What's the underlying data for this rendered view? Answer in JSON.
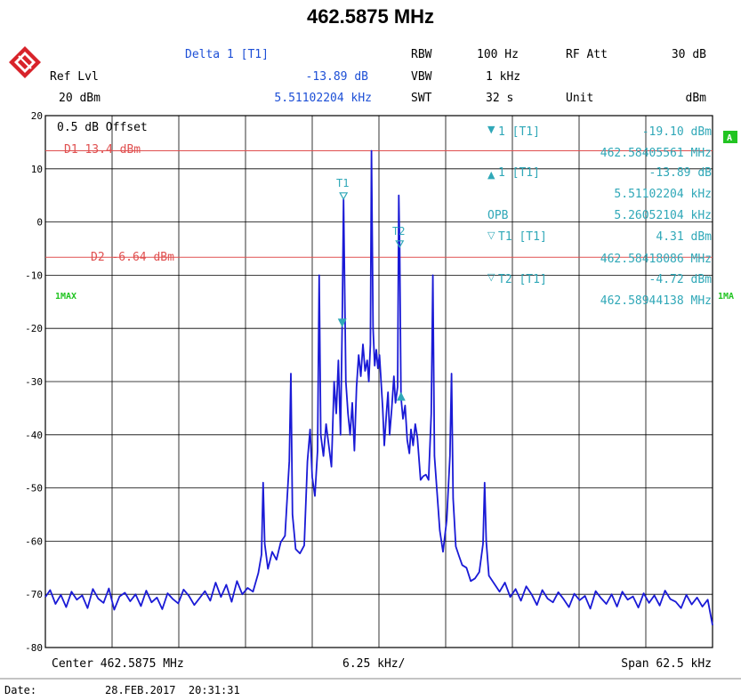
{
  "title": "462.5875 MHz",
  "header": {
    "delta_label": "Delta 1 [T1]",
    "delta_value": "-13.89 dB",
    "delta_freq": "5.51102204 kHz",
    "ref_lvl_label": "Ref Lvl",
    "ref_lvl_value": "20 dBm",
    "rbw_label": "RBW",
    "rbw_value": "100 Hz",
    "vbw_label": "VBW",
    "vbw_value": "1 kHz",
    "swt_label": "SWT",
    "swt_value": "32 s",
    "rf_att_label": "RF Att",
    "rf_att_value": "30 dB",
    "unit_label": "Unit",
    "unit_value": "dBm"
  },
  "footer": {
    "center": "Center 462.5875 MHz",
    "div": "6.25 kHz/",
    "span": "Span 62.5 kHz",
    "date_label": "Date:",
    "date_value": "28.FEB.2017  20:31:31"
  },
  "markers_panel": [
    {
      "symbol": "▼",
      "label": "1 [T1]",
      "value": "-19.10 dBm",
      "freq": "462.58405561 MHz"
    },
    {
      "symbol": "▲",
      "label": "1 [T1]",
      "value": "-13.89 dB",
      "freq": "5.51102204 kHz"
    },
    {
      "symbol": "",
      "label": "OPB",
      "value": "5.26052104 kHz",
      "freq": ""
    },
    {
      "symbol": "▽",
      "label": "T1 [T1]",
      "value": "4.31 dBm",
      "freq": "462.58418086 MHz"
    },
    {
      "symbol": "▽",
      "label": "T2 [T1]",
      "value": "-4.72 dBm",
      "freq": "462.58944138 MHz"
    }
  ],
  "plot_annotations": {
    "offset": "0.5 dB Offset",
    "d1": "D1 13.4 dBm",
    "d2": "D2 -6.64 dBm",
    "trace_left": "1MAX",
    "trace_right": "1MA",
    "a_badge": "A",
    "t1_tag": "T1",
    "t2_tag": "T2"
  },
  "colors": {
    "trace": "#1a1ad6",
    "display_lines": "#e05050",
    "markers": "#30a8b8",
    "trace_label": "#22c422",
    "header_blue": "#1d4fd6"
  },
  "chart_data": {
    "type": "line",
    "title": "462.5875 MHz",
    "xlabel": "",
    "ylabel": "",
    "x_unit": "kHz offset from center",
    "xlim": [
      -31.25,
      31.25
    ],
    "ylim": [
      -80,
      20
    ],
    "x_divisions": 10,
    "y_ticks": [
      20,
      10,
      0,
      -10,
      -20,
      -30,
      -40,
      -50,
      -60,
      -70,
      -80
    ],
    "grid": true,
    "reference_lines": [
      {
        "name": "D1",
        "value": 13.4
      },
      {
        "name": "D2",
        "value": -6.64
      }
    ],
    "markers": [
      {
        "name": "1",
        "x": -3.44,
        "y": -19.1
      },
      {
        "name": "T1",
        "x": -3.32,
        "y": 4.31
      },
      {
        "name": "T2",
        "x": 1.94,
        "y": -4.72
      },
      {
        "name": "D1",
        "x": 2.07,
        "y": -33.0
      }
    ],
    "series": [
      {
        "name": "1MAX",
        "points": [
          [
            -31.25,
            -70.5
          ],
          [
            -30.8,
            -69.2
          ],
          [
            -30.3,
            -71.8
          ],
          [
            -29.8,
            -70.1
          ],
          [
            -29.3,
            -72.4
          ],
          [
            -28.8,
            -69.5
          ],
          [
            -28.3,
            -71.0
          ],
          [
            -27.8,
            -70.2
          ],
          [
            -27.3,
            -72.6
          ],
          [
            -26.8,
            -69.0
          ],
          [
            -26.3,
            -70.8
          ],
          [
            -25.8,
            -71.6
          ],
          [
            -25.3,
            -68.9
          ],
          [
            -24.8,
            -72.9
          ],
          [
            -24.3,
            -70.4
          ],
          [
            -23.8,
            -69.7
          ],
          [
            -23.3,
            -71.3
          ],
          [
            -22.8,
            -70.0
          ],
          [
            -22.3,
            -72.2
          ],
          [
            -21.8,
            -69.3
          ],
          [
            -21.3,
            -71.5
          ],
          [
            -20.8,
            -70.6
          ],
          [
            -20.3,
            -72.8
          ],
          [
            -19.8,
            -69.8
          ],
          [
            -19.3,
            -70.9
          ],
          [
            -18.8,
            -71.7
          ],
          [
            -18.3,
            -69.1
          ],
          [
            -17.8,
            -70.3
          ],
          [
            -17.3,
            -72.0
          ],
          [
            -16.8,
            -70.7
          ],
          [
            -16.3,
            -69.4
          ],
          [
            -15.8,
            -71.2
          ],
          [
            -15.3,
            -67.8
          ],
          [
            -14.8,
            -70.5
          ],
          [
            -14.3,
            -68.2
          ],
          [
            -13.8,
            -71.4
          ],
          [
            -13.3,
            -67.5
          ],
          [
            -12.8,
            -70.0
          ],
          [
            -12.3,
            -68.8
          ],
          [
            -11.8,
            -69.5
          ],
          [
            -11.3,
            -66.0
          ],
          [
            -11.0,
            -62.5
          ],
          [
            -10.85,
            -49.0
          ],
          [
            -10.7,
            -60.5
          ],
          [
            -10.4,
            -65.2
          ],
          [
            -10.0,
            -62.0
          ],
          [
            -9.6,
            -63.5
          ],
          [
            -9.2,
            -60.2
          ],
          [
            -8.8,
            -59.0
          ],
          [
            -8.4,
            -45.0
          ],
          [
            -8.25,
            -28.5
          ],
          [
            -8.1,
            -55.0
          ],
          [
            -7.8,
            -61.5
          ],
          [
            -7.4,
            -62.3
          ],
          [
            -7.0,
            -60.8
          ],
          [
            -6.7,
            -45.0
          ],
          [
            -6.45,
            -39.0
          ],
          [
            -6.25,
            -48.0
          ],
          [
            -6.0,
            -51.5
          ],
          [
            -5.75,
            -43.0
          ],
          [
            -5.6,
            -10.0
          ],
          [
            -5.45,
            -40.0
          ],
          [
            -5.2,
            -44.0
          ],
          [
            -4.95,
            -38.0
          ],
          [
            -4.7,
            -42.0
          ],
          [
            -4.45,
            -46.0
          ],
          [
            -4.2,
            -30.0
          ],
          [
            -4.0,
            -36.0
          ],
          [
            -3.8,
            -26.0
          ],
          [
            -3.6,
            -40.0
          ],
          [
            -3.44,
            -19.1
          ],
          [
            -3.32,
            4.31
          ],
          [
            -3.1,
            -30.0
          ],
          [
            -2.9,
            -36.0
          ],
          [
            -2.7,
            -40.0
          ],
          [
            -2.5,
            -34.0
          ],
          [
            -2.3,
            -43.0
          ],
          [
            -2.1,
            -31.0
          ],
          [
            -1.9,
            -25.0
          ],
          [
            -1.7,
            -29.0
          ],
          [
            -1.5,
            -23.0
          ],
          [
            -1.3,
            -28.0
          ],
          [
            -1.1,
            -26.0
          ],
          [
            -0.95,
            -30.0
          ],
          [
            -0.8,
            -23.0
          ],
          [
            -0.7,
            13.4
          ],
          [
            -0.55,
            -20.0
          ],
          [
            -0.4,
            -27.0
          ],
          [
            -0.25,
            -24.0
          ],
          [
            -0.1,
            -27.5
          ],
          [
            0.05,
            -25.0
          ],
          [
            0.2,
            -30.0
          ],
          [
            0.35,
            -35.0
          ],
          [
            0.5,
            -42.0
          ],
          [
            0.7,
            -36.0
          ],
          [
            0.85,
            -32.0
          ],
          [
            1.0,
            -40.0
          ],
          [
            1.2,
            -35.0
          ],
          [
            1.4,
            -29.0
          ],
          [
            1.55,
            -34.0
          ],
          [
            1.75,
            -31.0
          ],
          [
            1.86,
            5.0
          ],
          [
            1.94,
            -4.72
          ],
          [
            2.07,
            -33.0
          ],
          [
            2.25,
            -37.0
          ],
          [
            2.45,
            -34.5
          ],
          [
            2.65,
            -41.0
          ],
          [
            2.85,
            -43.5
          ],
          [
            3.0,
            -39.0
          ],
          [
            3.2,
            -42.0
          ],
          [
            3.4,
            -38.0
          ],
          [
            3.6,
            -40.5
          ],
          [
            3.9,
            -48.5
          ],
          [
            4.15,
            -47.8
          ],
          [
            4.4,
            -47.5
          ],
          [
            4.65,
            -48.5
          ],
          [
            4.9,
            -36.0
          ],
          [
            5.05,
            -10.0
          ],
          [
            5.2,
            -44.0
          ],
          [
            5.45,
            -51.0
          ],
          [
            5.7,
            -58.0
          ],
          [
            6.0,
            -62.0
          ],
          [
            6.35,
            -56.0
          ],
          [
            6.65,
            -44.0
          ],
          [
            6.8,
            -28.5
          ],
          [
            6.95,
            -52.0
          ],
          [
            7.2,
            -61.0
          ],
          [
            7.5,
            -62.8
          ],
          [
            7.8,
            -64.5
          ],
          [
            8.2,
            -65.0
          ],
          [
            8.6,
            -67.5
          ],
          [
            9.0,
            -67.0
          ],
          [
            9.4,
            -65.8
          ],
          [
            9.75,
            -60.5
          ],
          [
            9.9,
            -49.0
          ],
          [
            10.05,
            -60.0
          ],
          [
            10.3,
            -66.5
          ],
          [
            10.8,
            -68.0
          ],
          [
            11.3,
            -69.5
          ],
          [
            11.8,
            -67.8
          ],
          [
            12.3,
            -70.5
          ],
          [
            12.8,
            -69.0
          ],
          [
            13.3,
            -71.2
          ],
          [
            13.8,
            -68.5
          ],
          [
            14.3,
            -70.0
          ],
          [
            14.8,
            -72.0
          ],
          [
            15.3,
            -69.2
          ],
          [
            15.8,
            -70.8
          ],
          [
            16.3,
            -71.5
          ],
          [
            16.8,
            -69.6
          ],
          [
            17.3,
            -70.9
          ],
          [
            17.8,
            -72.4
          ],
          [
            18.3,
            -69.9
          ],
          [
            18.8,
            -71.1
          ],
          [
            19.3,
            -70.3
          ],
          [
            19.8,
            -72.7
          ],
          [
            20.3,
            -69.4
          ],
          [
            20.8,
            -70.7
          ],
          [
            21.3,
            -71.8
          ],
          [
            21.8,
            -70.0
          ],
          [
            22.3,
            -72.3
          ],
          [
            22.8,
            -69.5
          ],
          [
            23.3,
            -71.0
          ],
          [
            23.8,
            -70.4
          ],
          [
            24.3,
            -72.5
          ],
          [
            24.8,
            -69.8
          ],
          [
            25.3,
            -71.6
          ],
          [
            25.8,
            -70.2
          ],
          [
            26.3,
            -72.1
          ],
          [
            26.8,
            -69.3
          ],
          [
            27.3,
            -70.9
          ],
          [
            27.8,
            -71.4
          ],
          [
            28.3,
            -72.6
          ],
          [
            28.8,
            -70.1
          ],
          [
            29.3,
            -71.9
          ],
          [
            29.8,
            -70.6
          ],
          [
            30.3,
            -72.3
          ],
          [
            30.8,
            -71.0
          ],
          [
            31.25,
            -75.8
          ]
        ]
      }
    ]
  }
}
